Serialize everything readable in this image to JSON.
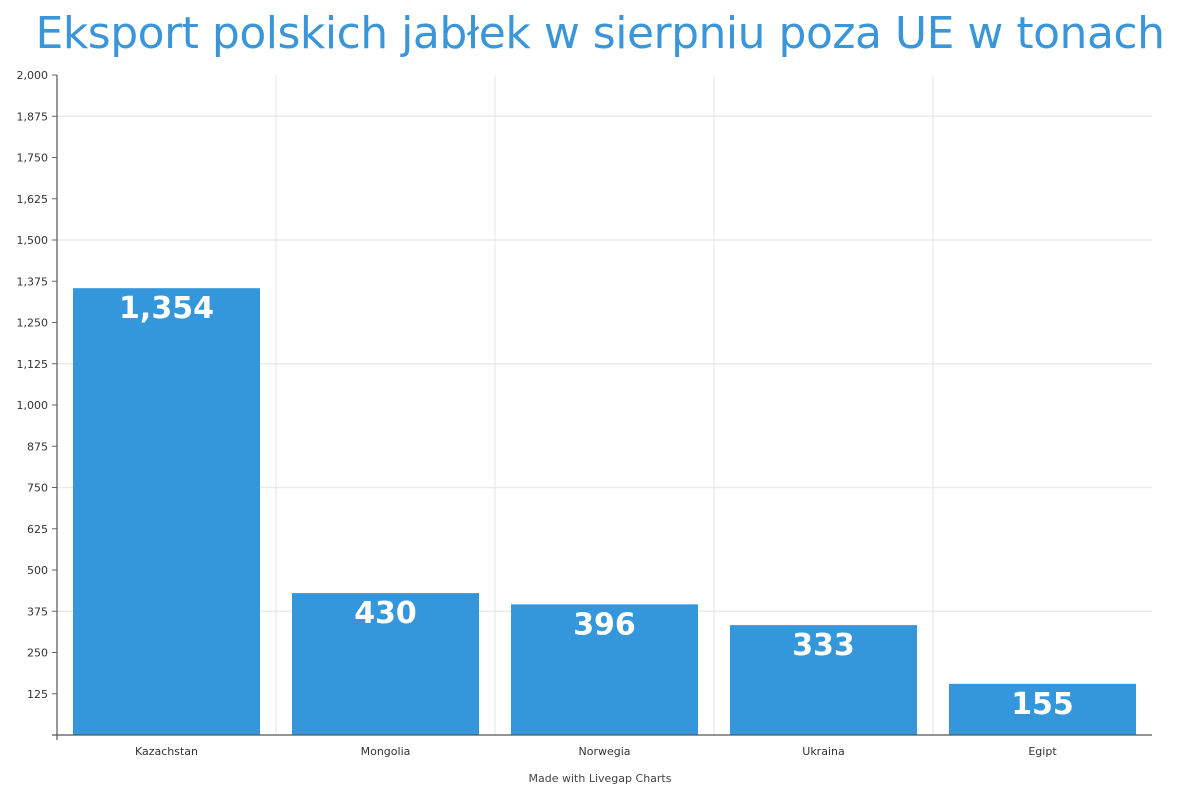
{
  "chart_data": {
    "type": "bar",
    "title": "Eksport polskich jabłek w sierpniu poza UE w tonach",
    "categories": [
      "Kazachstan",
      "Mongolia",
      "Norwegia",
      "Ukraina",
      "Egipt"
    ],
    "values": [
      1354,
      430,
      396,
      333,
      155
    ],
    "data_labels": [
      "1,354",
      "430",
      "396",
      "333",
      "155"
    ],
    "xlabel": "",
    "ylabel": "",
    "ylim": [
      0,
      2000
    ],
    "yticks": [
      "125",
      "250",
      "375",
      "500",
      "625",
      "750",
      "875",
      "1,000",
      "1,125",
      "1,250",
      "1,375",
      "1,500",
      "1,625",
      "1,750",
      "1,875",
      "2,000"
    ],
    "grid": true,
    "bar_color": "#3597db",
    "title_color": "#3a96d9"
  },
  "footer": {
    "credit": "Made with Livegap Charts"
  }
}
